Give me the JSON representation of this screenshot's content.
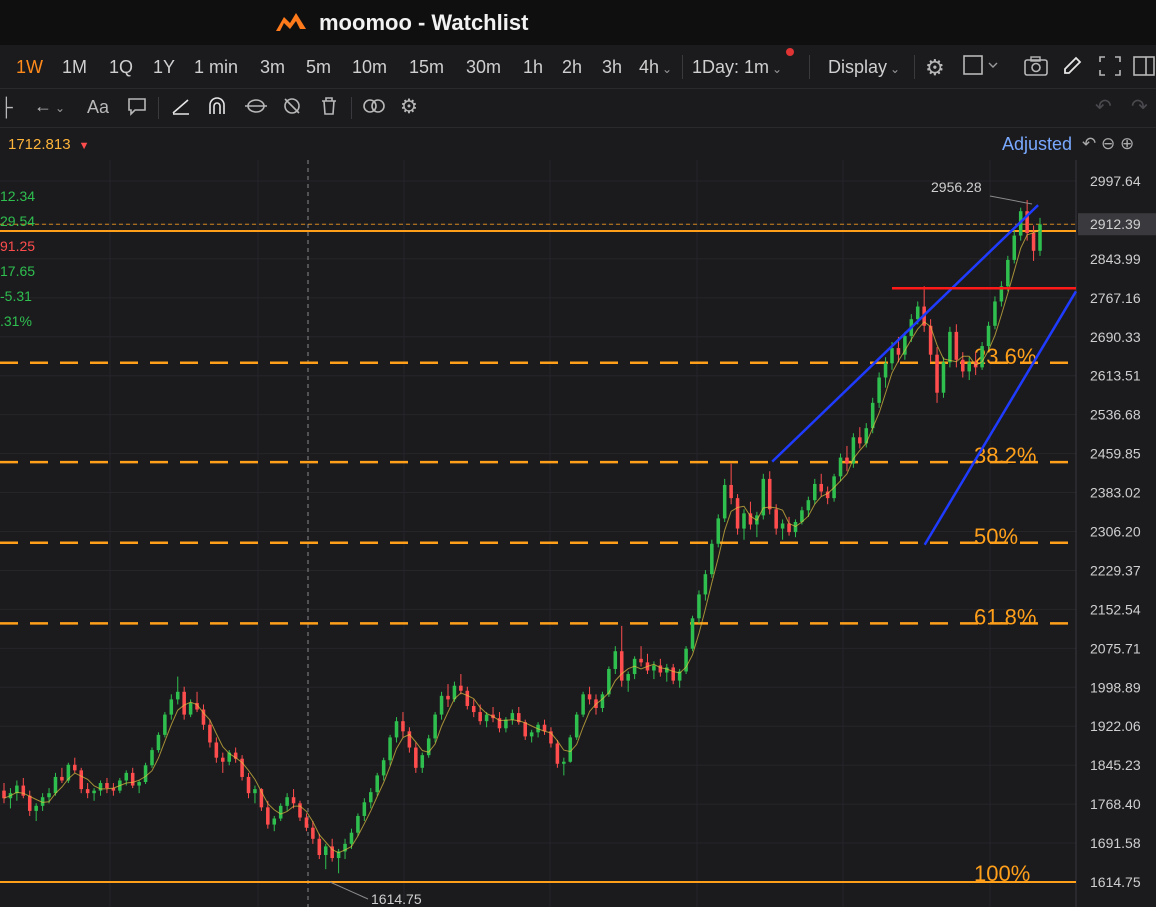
{
  "app": {
    "title": "moomoo - Watchlist"
  },
  "toolbar": {
    "timeframes": [
      "1W",
      "1M",
      "1Q",
      "1Y",
      "1 min",
      "3m",
      "5m",
      "10m",
      "15m",
      "30m",
      "1h",
      "2h",
      "3h"
    ],
    "active_timeframe": "1W",
    "dropdown_4h": "4h",
    "session": "1Day: 1m",
    "display_label": "Display"
  },
  "drawing_tools": {
    "text_tool": "Aa"
  },
  "info": {
    "top_price": "1712.813",
    "adjusted_label": "Adjusted",
    "left_values": [
      {
        "text": "12.34",
        "color": "#2fbf4f"
      },
      {
        "text": "29.54",
        "color": "#2fbf4f"
      },
      {
        "text": "91.25",
        "color": "#ff4d4d"
      },
      {
        "text": "17.65",
        "color": "#2fbf4f"
      },
      {
        "text": "-5.31",
        "color": "#2fbf4f"
      },
      {
        "text": ".31%",
        "color": "#2fbf4f"
      }
    ]
  },
  "colors": {
    "up": "#2fbf4f",
    "down": "#ff4d4d",
    "fib": "#ff9f1a",
    "channel": "#1f3bff",
    "resistance": "#ff1a1a",
    "grid": "#26262a"
  },
  "chart_data": {
    "type": "candlestick",
    "y_ticks": [
      2997.64,
      2912.39,
      2843.99,
      2767.16,
      2690.33,
      2613.51,
      2536.68,
      2459.85,
      2383.02,
      2306.2,
      2229.37,
      2152.54,
      2075.71,
      1998.89,
      1922.06,
      1845.23,
      1768.4,
      1691.58,
      1614.75
    ],
    "ylim": [
      1614.75,
      3040
    ],
    "current_price": 2912.39,
    "high_label": 2956.28,
    "low_label": 1614.75,
    "fib_levels": [
      {
        "label": "23.6%",
        "value": 2639
      },
      {
        "label": "38.2%",
        "value": 2443
      },
      {
        "label": "50%",
        "value": 2284
      },
      {
        "label": "61.8%",
        "value": 2125
      },
      {
        "label": "100%",
        "value": 1614.75
      }
    ],
    "top_line": 2956.28,
    "resistance_line": 2786,
    "channel_upper": [
      [
        0.668,
        2444
      ],
      [
        0.898,
        2950
      ]
    ],
    "channel_lower": [
      [
        0.703,
        2280
      ],
      [
        0.932,
        2780
      ]
    ],
    "candles": [
      [
        1795,
        1810,
        1770,
        1780
      ],
      [
        1780,
        1800,
        1760,
        1790
      ],
      [
        1790,
        1815,
        1775,
        1805
      ],
      [
        1805,
        1820,
        1780,
        1785
      ],
      [
        1785,
        1795,
        1745,
        1755
      ],
      [
        1755,
        1770,
        1735,
        1765
      ],
      [
        1765,
        1790,
        1755,
        1782
      ],
      [
        1782,
        1800,
        1770,
        1790
      ],
      [
        1790,
        1830,
        1785,
        1822
      ],
      [
        1822,
        1840,
        1810,
        1815
      ],
      [
        1815,
        1850,
        1810,
        1846
      ],
      [
        1846,
        1860,
        1830,
        1835
      ],
      [
        1835,
        1840,
        1790,
        1798
      ],
      [
        1798,
        1810,
        1780,
        1790
      ],
      [
        1790,
        1800,
        1775,
        1795
      ],
      [
        1795,
        1815,
        1785,
        1810
      ],
      [
        1810,
        1820,
        1790,
        1800
      ],
      [
        1800,
        1810,
        1785,
        1795
      ],
      [
        1795,
        1820,
        1790,
        1815
      ],
      [
        1815,
        1835,
        1805,
        1830
      ],
      [
        1830,
        1840,
        1800,
        1805
      ],
      [
        1805,
        1815,
        1790,
        1812
      ],
      [
        1812,
        1850,
        1808,
        1845
      ],
      [
        1845,
        1880,
        1840,
        1875
      ],
      [
        1875,
        1910,
        1870,
        1905
      ],
      [
        1905,
        1950,
        1900,
        1945
      ],
      [
        1945,
        1985,
        1935,
        1975
      ],
      [
        1975,
        2020,
        1965,
        1990
      ],
      [
        1990,
        2000,
        1935,
        1945
      ],
      [
        1945,
        1975,
        1940,
        1968
      ],
      [
        1968,
        1990,
        1950,
        1955
      ],
      [
        1955,
        1965,
        1915,
        1925
      ],
      [
        1925,
        1935,
        1880,
        1890
      ],
      [
        1890,
        1900,
        1850,
        1860
      ],
      [
        1860,
        1870,
        1830,
        1852
      ],
      [
        1852,
        1875,
        1845,
        1870
      ],
      [
        1870,
        1880,
        1850,
        1858
      ],
      [
        1858,
        1865,
        1815,
        1822
      ],
      [
        1822,
        1830,
        1780,
        1790
      ],
      [
        1790,
        1805,
        1770,
        1798
      ],
      [
        1798,
        1800,
        1755,
        1762
      ],
      [
        1762,
        1775,
        1720,
        1728
      ],
      [
        1728,
        1745,
        1715,
        1740
      ],
      [
        1740,
        1770,
        1735,
        1765
      ],
      [
        1765,
        1790,
        1755,
        1782
      ],
      [
        1782,
        1798,
        1760,
        1770
      ],
      [
        1770,
        1775,
        1735,
        1742
      ],
      [
        1742,
        1750,
        1715,
        1722
      ],
      [
        1722,
        1735,
        1690,
        1700
      ],
      [
        1700,
        1710,
        1660,
        1668
      ],
      [
        1668,
        1690,
        1640,
        1685
      ],
      [
        1685,
        1700,
        1655,
        1662
      ],
      [
        1662,
        1680,
        1632,
        1675
      ],
      [
        1675,
        1700,
        1660,
        1690
      ],
      [
        1690,
        1720,
        1680,
        1712
      ],
      [
        1712,
        1750,
        1705,
        1745
      ],
      [
        1745,
        1780,
        1735,
        1772
      ],
      [
        1772,
        1800,
        1760,
        1792
      ],
      [
        1792,
        1830,
        1785,
        1825
      ],
      [
        1825,
        1860,
        1815,
        1855
      ],
      [
        1855,
        1905,
        1845,
        1900
      ],
      [
        1900,
        1940,
        1890,
        1932
      ],
      [
        1932,
        1950,
        1900,
        1912
      ],
      [
        1912,
        1920,
        1870,
        1880
      ],
      [
        1880,
        1890,
        1830,
        1840
      ],
      [
        1840,
        1870,
        1830,
        1865
      ],
      [
        1865,
        1905,
        1860,
        1898
      ],
      [
        1898,
        1950,
        1890,
        1945
      ],
      [
        1945,
        1990,
        1935,
        1982
      ],
      [
        1982,
        2005,
        1960,
        1975
      ],
      [
        1975,
        2010,
        1970,
        2002
      ],
      [
        2002,
        2025,
        1985,
        1992
      ],
      [
        1992,
        2000,
        1955,
        1962
      ],
      [
        1962,
        1975,
        1940,
        1950
      ],
      [
        1950,
        1965,
        1925,
        1932
      ],
      [
        1932,
        1950,
        1920,
        1945
      ],
      [
        1945,
        1960,
        1930,
        1938
      ],
      [
        1938,
        1950,
        1910,
        1918
      ],
      [
        1918,
        1940,
        1910,
        1935
      ],
      [
        1935,
        1955,
        1925,
        1948
      ],
      [
        1948,
        1960,
        1925,
        1930
      ],
      [
        1930,
        1935,
        1895,
        1902
      ],
      [
        1902,
        1915,
        1890,
        1910
      ],
      [
        1910,
        1930,
        1900,
        1925
      ],
      [
        1925,
        1935,
        1905,
        1912
      ],
      [
        1912,
        1920,
        1880,
        1888
      ],
      [
        1888,
        1895,
        1840,
        1848
      ],
      [
        1848,
        1860,
        1825,
        1852
      ],
      [
        1852,
        1905,
        1850,
        1900
      ],
      [
        1900,
        1950,
        1895,
        1945
      ],
      [
        1945,
        1990,
        1940,
        1985
      ],
      [
        1985,
        2000,
        1965,
        1975
      ],
      [
        1975,
        1985,
        1945,
        1958
      ],
      [
        1958,
        1990,
        1950,
        1985
      ],
      [
        1985,
        2040,
        1980,
        2035
      ],
      [
        2035,
        2080,
        2025,
        2070
      ],
      [
        2070,
        2120,
        2000,
        2012
      ],
      [
        2012,
        2030,
        1990,
        2025
      ],
      [
        2025,
        2060,
        2015,
        2055
      ],
      [
        2055,
        2080,
        2040,
        2048
      ],
      [
        2048,
        2065,
        2025,
        2032
      ],
      [
        2032,
        2050,
        2015,
        2042
      ],
      [
        2042,
        2055,
        2020,
        2028
      ],
      [
        2028,
        2045,
        2010,
        2038
      ],
      [
        2038,
        2045,
        2005,
        2012
      ],
      [
        2012,
        2035,
        1998,
        2030
      ],
      [
        2030,
        2080,
        2025,
        2075
      ],
      [
        2075,
        2140,
        2070,
        2135
      ],
      [
        2135,
        2190,
        2125,
        2182
      ],
      [
        2182,
        2230,
        2170,
        2222
      ],
      [
        2222,
        2290,
        2215,
        2282
      ],
      [
        2282,
        2340,
        2275,
        2332
      ],
      [
        2332,
        2410,
        2325,
        2398
      ],
      [
        2398,
        2440,
        2360,
        2372
      ],
      [
        2372,
        2380,
        2300,
        2312
      ],
      [
        2312,
        2350,
        2290,
        2342
      ],
      [
        2342,
        2365,
        2310,
        2320
      ],
      [
        2320,
        2345,
        2295,
        2338
      ],
      [
        2338,
        2420,
        2330,
        2410
      ],
      [
        2410,
        2425,
        2340,
        2350
      ],
      [
        2350,
        2360,
        2300,
        2312
      ],
      [
        2312,
        2330,
        2290,
        2322
      ],
      [
        2322,
        2335,
        2298,
        2305
      ],
      [
        2305,
        2330,
        2295,
        2325
      ],
      [
        2325,
        2355,
        2320,
        2348
      ],
      [
        2348,
        2375,
        2335,
        2368
      ],
      [
        2368,
        2410,
        2360,
        2400
      ],
      [
        2400,
        2420,
        2375,
        2385
      ],
      [
        2385,
        2395,
        2360,
        2372
      ],
      [
        2372,
        2420,
        2365,
        2415
      ],
      [
        2415,
        2460,
        2405,
        2452
      ],
      [
        2452,
        2475,
        2425,
        2440
      ],
      [
        2440,
        2500,
        2432,
        2492
      ],
      [
        2492,
        2512,
        2470,
        2480
      ],
      [
        2480,
        2520,
        2472,
        2510
      ],
      [
        2510,
        2570,
        2500,
        2560
      ],
      [
        2560,
        2620,
        2550,
        2610
      ],
      [
        2610,
        2650,
        2590,
        2638
      ],
      [
        2638,
        2680,
        2625,
        2668
      ],
      [
        2668,
        2690,
        2640,
        2655
      ],
      [
        2655,
        2700,
        2645,
        2692
      ],
      [
        2692,
        2735,
        2680,
        2725
      ],
      [
        2725,
        2760,
        2715,
        2750
      ],
      [
        2750,
        2790,
        2700,
        2712
      ],
      [
        2712,
        2725,
        2640,
        2655
      ],
      [
        2655,
        2670,
        2560,
        2580
      ],
      [
        2580,
        2650,
        2570,
        2640
      ],
      [
        2640,
        2710,
        2630,
        2700
      ],
      [
        2700,
        2715,
        2630,
        2645
      ],
      [
        2645,
        2660,
        2610,
        2622
      ],
      [
        2622,
        2650,
        2605,
        2640
      ],
      [
        2640,
        2660,
        2615,
        2630
      ],
      [
        2630,
        2680,
        2625,
        2672
      ],
      [
        2672,
        2720,
        2665,
        2712
      ],
      [
        2712,
        2770,
        2705,
        2760
      ],
      [
        2760,
        2800,
        2750,
        2790
      ],
      [
        2790,
        2850,
        2780,
        2842
      ],
      [
        2842,
        2900,
        2835,
        2890
      ],
      [
        2890,
        2945,
        2880,
        2938
      ],
      [
        2938,
        2960,
        2880,
        2895
      ],
      [
        2895,
        2910,
        2840,
        2860
      ],
      [
        2860,
        2925,
        2850,
        2912
      ]
    ]
  }
}
